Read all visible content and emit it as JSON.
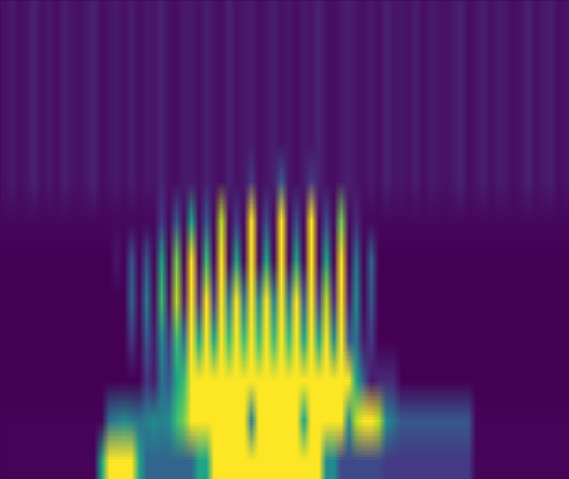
{
  "chart_data": {
    "type": "heatmap",
    "color": "viridis",
    "tick_labels": false,
    "cells": [
      [
        0.08,
        0.11,
        0.07,
        0.09,
        0.13,
        0.08,
        0.1,
        0.07,
        0.12,
        0.09,
        0.08,
        0.1,
        0.13,
        0.07,
        0.09,
        0.11,
        0.08,
        0.12,
        0.07,
        0.1,
        0.09,
        0.13,
        0.08,
        0.07,
        0.11,
        0.1,
        0.08,
        0.12,
        0.09,
        0.07,
        0.13,
        0.08,
        0.1,
        0.11,
        0.07,
        0.09,
        0.12,
        0.08,
        0.1,
        0.07,
        0.11,
        0.09,
        0.13,
        0.08,
        0.07,
        0.1,
        0.12,
        0.09,
        0.08,
        0.11,
        0.07,
        0.13,
        0.09,
        0.1,
        0.08,
        0.12,
        0.07,
        0.11,
        0.09,
        0.08,
        0.1,
        0.13,
        0.07,
        0.09,
        0.12,
        0.08,
        0.11,
        0.1,
        0.07,
        0.09,
        0.13,
        0.08,
        0.1,
        0.12,
        0.07,
        0.09
      ],
      [
        0.08,
        0.11,
        0.07,
        0.09,
        0.13,
        0.08,
        0.1,
        0.07,
        0.12,
        0.09,
        0.08,
        0.1,
        0.13,
        0.07,
        0.09,
        0.11,
        0.08,
        0.12,
        0.07,
        0.1,
        0.09,
        0.13,
        0.08,
        0.07,
        0.11,
        0.1,
        0.08,
        0.12,
        0.09,
        0.07,
        0.13,
        0.08,
        0.1,
        0.11,
        0.07,
        0.09,
        0.12,
        0.08,
        0.1,
        0.07,
        0.11,
        0.09,
        0.13,
        0.08,
        0.07,
        0.1,
        0.12,
        0.09,
        0.08,
        0.11,
        0.07,
        0.13,
        0.09,
        0.1,
        0.08,
        0.12,
        0.07,
        0.11,
        0.09,
        0.08,
        0.1,
        0.13,
        0.07,
        0.09,
        0.12,
        0.08,
        0.11,
        0.1,
        0.07,
        0.09,
        0.13,
        0.08,
        0.1,
        0.12,
        0.07,
        0.09
      ],
      [
        0.08,
        0.11,
        0.07,
        0.09,
        0.13,
        0.08,
        0.1,
        0.07,
        0.12,
        0.09,
        0.08,
        0.1,
        0.13,
        0.07,
        0.09,
        0.11,
        0.08,
        0.12,
        0.07,
        0.1,
        0.09,
        0.13,
        0.08,
        0.07,
        0.11,
        0.1,
        0.08,
        0.12,
        0.09,
        0.07,
        0.13,
        0.08,
        0.1,
        0.11,
        0.07,
        0.09,
        0.12,
        0.08,
        0.1,
        0.07,
        0.11,
        0.09,
        0.13,
        0.08,
        0.07,
        0.1,
        0.12,
        0.09,
        0.08,
        0.11,
        0.07,
        0.13,
        0.09,
        0.1,
        0.08,
        0.12,
        0.07,
        0.11,
        0.09,
        0.08,
        0.1,
        0.13,
        0.07,
        0.09,
        0.12,
        0.08,
        0.11,
        0.1,
        0.07,
        0.09,
        0.13,
        0.08,
        0.1,
        0.12,
        0.07,
        0.09
      ],
      [
        0.08,
        0.11,
        0.07,
        0.09,
        0.13,
        0.08,
        0.1,
        0.07,
        0.12,
        0.09,
        0.08,
        0.1,
        0.13,
        0.07,
        0.09,
        0.11,
        0.08,
        0.12,
        0.07,
        0.1,
        0.09,
        0.13,
        0.08,
        0.07,
        0.11,
        0.1,
        0.08,
        0.12,
        0.09,
        0.07,
        0.13,
        0.08,
        0.1,
        0.11,
        0.07,
        0.09,
        0.12,
        0.08,
        0.1,
        0.07,
        0.11,
        0.09,
        0.13,
        0.08,
        0.07,
        0.1,
        0.12,
        0.09,
        0.08,
        0.11,
        0.07,
        0.13,
        0.09,
        0.1,
        0.08,
        0.12,
        0.07,
        0.11,
        0.09,
        0.08,
        0.1,
        0.13,
        0.07,
        0.09,
        0.12,
        0.08,
        0.11,
        0.1,
        0.07,
        0.09,
        0.13,
        0.08,
        0.1,
        0.12,
        0.07,
        0.09
      ],
      [
        0.08,
        0.11,
        0.07,
        0.09,
        0.13,
        0.08,
        0.1,
        0.07,
        0.12,
        0.09,
        0.08,
        0.1,
        0.13,
        0.07,
        0.09,
        0.11,
        0.08,
        0.12,
        0.07,
        0.1,
        0.09,
        0.13,
        0.08,
        0.07,
        0.11,
        0.1,
        0.08,
        0.12,
        0.09,
        0.07,
        0.13,
        0.08,
        0.1,
        0.2,
        0.07,
        0.09,
        0.12,
        0.3,
        0.1,
        0.07,
        0.11,
        0.2,
        0.13,
        0.08,
        0.07,
        0.1,
        0.12,
        0.09,
        0.08,
        0.11,
        0.07,
        0.13,
        0.09,
        0.1,
        0.08,
        0.12,
        0.07,
        0.11,
        0.09,
        0.08,
        0.1,
        0.13,
        0.07,
        0.09,
        0.12,
        0.08,
        0.11,
        0.1,
        0.07,
        0.09,
        0.13,
        0.08,
        0.1,
        0.12,
        0.07,
        0.09
      ],
      [
        0.06,
        0.06,
        0.06,
        0.06,
        0.06,
        0.06,
        0.06,
        0.06,
        0.06,
        0.06,
        0.06,
        0.06,
        0.06,
        0.06,
        0.06,
        0.06,
        0.06,
        0.06,
        0.06,
        0.06,
        0.06,
        0.2,
        0.06,
        0.3,
        0.06,
        0.6,
        0.06,
        0.3,
        0.06,
        0.9,
        0.06,
        0.2,
        0.06,
        1,
        0.06,
        0.25,
        0.06,
        1,
        0.06,
        0.25,
        0.06,
        1,
        0.06,
        0.25,
        0.06,
        0.8,
        0.06,
        0.15,
        0.06,
        0.06,
        0.06,
        0.06,
        0.06,
        0.06,
        0.06,
        0.06,
        0.06,
        0.06,
        0.06,
        0.06,
        0.06,
        0.06,
        0.06,
        0.06,
        0.06,
        0.06,
        0.06,
        0.06,
        0.06,
        0.06,
        0.06,
        0.06,
        0.06,
        0.06,
        0.06,
        0.06
      ],
      [
        0.04,
        0.04,
        0.04,
        0.04,
        0.04,
        0.04,
        0.04,
        0.04,
        0.04,
        0.04,
        0.04,
        0.04,
        0.04,
        0.04,
        0.04,
        0.1,
        0.04,
        0.3,
        0.04,
        0.3,
        0.04,
        0.6,
        0.04,
        0.8,
        0.04,
        1,
        0.05,
        0.7,
        0.05,
        1,
        0.05,
        0.6,
        0.05,
        1,
        0.05,
        0.6,
        0.05,
        1,
        0.05,
        0.6,
        0.05,
        1,
        0.05,
        0.6,
        0.05,
        1,
        0.04,
        0.4,
        0.04,
        0.35,
        0.04,
        0.04,
        0.04,
        0.04,
        0.04,
        0.04,
        0.04,
        0.04,
        0.04,
        0.04,
        0.04,
        0.04,
        0.04,
        0.04,
        0.04,
        0.04,
        0.04,
        0.04,
        0.04,
        0.04,
        0.04,
        0.04,
        0.04,
        0.04,
        0.04,
        0.04
      ],
      [
        0.04,
        0.04,
        0.04,
        0.04,
        0.04,
        0.04,
        0.04,
        0.04,
        0.04,
        0.04,
        0.04,
        0.04,
        0.04,
        0.04,
        0.04,
        0.04,
        0.04,
        0.35,
        0.05,
        0.45,
        0.05,
        0.7,
        0.08,
        0.9,
        0.1,
        1,
        0.15,
        1,
        0.2,
        1,
        0.4,
        1,
        0.4,
        1,
        0.45,
        1,
        0.45,
        1,
        0.4,
        1,
        0.3,
        1,
        0.2,
        0.9,
        0.15,
        1,
        0.1,
        0.5,
        0.05,
        0.3,
        0.04,
        0.04,
        0.04,
        0.04,
        0.04,
        0.04,
        0.04,
        0.04,
        0.04,
        0.04,
        0.04,
        0.04,
        0.04,
        0.04,
        0.04,
        0.04,
        0.04,
        0.04,
        0.04,
        0.04,
        0.04,
        0.04,
        0.04,
        0.04,
        0.04,
        0.04
      ],
      [
        0.04,
        0.04,
        0.04,
        0.04,
        0.04,
        0.04,
        0.04,
        0.04,
        0.04,
        0.04,
        0.04,
        0.04,
        0.04,
        0.04,
        0.04,
        0.04,
        0.04,
        0.2,
        0.05,
        0.3,
        0.1,
        0.5,
        0.2,
        0.7,
        0.4,
        1,
        0.6,
        1,
        0.6,
        1,
        0.7,
        1,
        0.7,
        1,
        0.7,
        1,
        0.7,
        1,
        0.7,
        1,
        0.6,
        1,
        0.6,
        1,
        0.5,
        1,
        0.3,
        0.4,
        0.1,
        0.2,
        0.04,
        0.04,
        0.04,
        0.04,
        0.04,
        0.04,
        0.04,
        0.04,
        0.04,
        0.04,
        0.04,
        0.04,
        0.04,
        0.04,
        0.04,
        0.04,
        0.04,
        0.04,
        0.04,
        0.04,
        0.04,
        0.04,
        0.04,
        0.04,
        0.04,
        0.04
      ],
      [
        0.04,
        0.04,
        0.04,
        0.04,
        0.04,
        0.04,
        0.04,
        0.04,
        0.04,
        0.04,
        0.04,
        0.04,
        0.04,
        0.04,
        0.04,
        0.04,
        0.04,
        0.04,
        0.04,
        0.2,
        0.1,
        0.4,
        0.3,
        0.6,
        0.7,
        1,
        1,
        1,
        1,
        1,
        1,
        1,
        1,
        1,
        1,
        1,
        1,
        1,
        1,
        1,
        1,
        1,
        1,
        1,
        1,
        1,
        1,
        0.6,
        0.3,
        0.1,
        0.15,
        0.15,
        0.15,
        0.04,
        0.04,
        0.04,
        0.04,
        0.04,
        0.04,
        0.04,
        0.04,
        0.04,
        0.04,
        0.04,
        0.04,
        0.04,
        0.04,
        0.04,
        0.04,
        0.04,
        0.04,
        0.04,
        0.04,
        0.04,
        0.04,
        0.04
      ],
      [
        0.05,
        0.05,
        0.05,
        0.05,
        0.05,
        0.05,
        0.05,
        0.05,
        0.05,
        0.05,
        0.05,
        0.05,
        0.05,
        0.05,
        0.4,
        0.45,
        0.5,
        0.45,
        0.4,
        0.45,
        0.5,
        0.45,
        0.5,
        0.7,
        0.8,
        1,
        1,
        1,
        1,
        1,
        1,
        1,
        1,
        0.45,
        1,
        1,
        1,
        1,
        1,
        1,
        0.6,
        1,
        1,
        1,
        1,
        1,
        0.5,
        0.9,
        1,
        1,
        0.9,
        0.5,
        0.4,
        0.3,
        0.3,
        0.3,
        0.3,
        0.3,
        0.3,
        0.3,
        0.3,
        0.3,
        0.3,
        0.05,
        0.05,
        0.05,
        0.05,
        0.05,
        0.05,
        0.05,
        0.05,
        0.05,
        0.05,
        0.05,
        0.05,
        0.05
      ],
      [
        0.05,
        0.05,
        0.05,
        0.05,
        0.05,
        0.05,
        0.05,
        0.05,
        0.05,
        0.05,
        0.05,
        0.05,
        0.05,
        0.6,
        1,
        1,
        1,
        1,
        0.6,
        0.35,
        0.35,
        0.35,
        0.35,
        0.35,
        0.35,
        0.35,
        0.6,
        0.6,
        1,
        1,
        1,
        1,
        1,
        1,
        1,
        1,
        1,
        1,
        1,
        1,
        1,
        1,
        1,
        0.5,
        0.5,
        0.25,
        0.25,
        0.25,
        0.25,
        0.25,
        0.25,
        0.2,
        0.2,
        0.2,
        0.2,
        0.2,
        0.2,
        0.2,
        0.2,
        0.2,
        0.2,
        0.2,
        0.2,
        0.05,
        0.05,
        0.05,
        0.05,
        0.05,
        0.05,
        0.05,
        0.05,
        0.05,
        0.05,
        0.05,
        0.05,
        0.05
      ]
    ]
  }
}
